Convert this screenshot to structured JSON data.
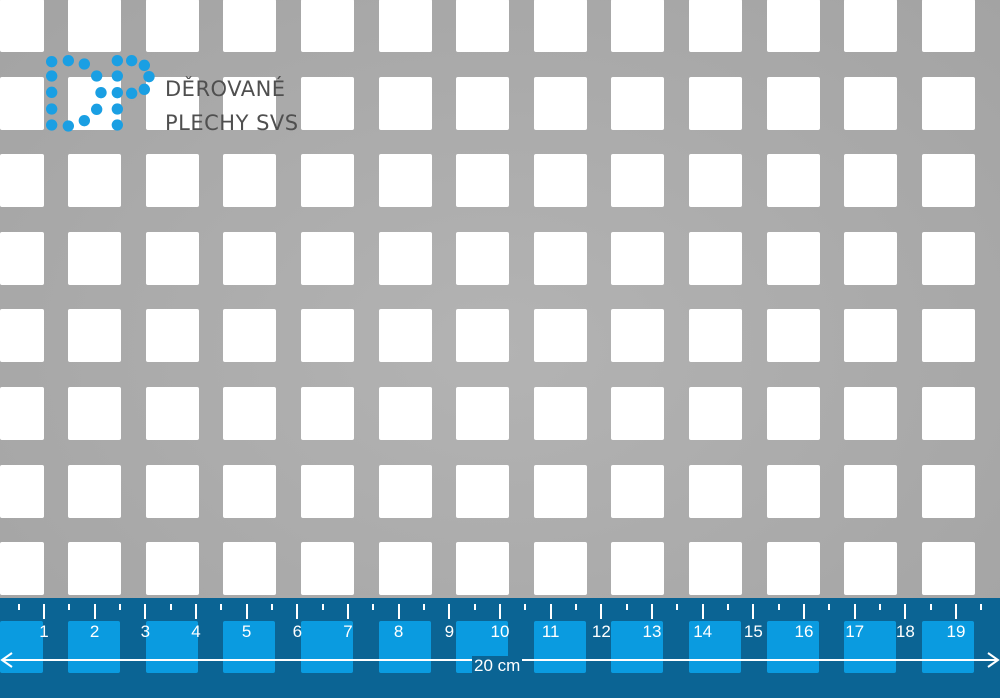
{
  "brand": {
    "line1": "DĚROVANÉ",
    "line2": "PLECHY SVS",
    "dot_color": "#1a9fe3",
    "text_color": "#4f4f4f"
  },
  "ruler": {
    "labels": [
      "1",
      "2",
      "3",
      "4",
      "5",
      "6",
      "7",
      "8",
      "9",
      "10",
      "11",
      "12",
      "13",
      "14",
      "15",
      "16",
      "17",
      "18",
      "19"
    ],
    "length_label": "20 cm",
    "band_color": "#0b6494",
    "hole_color": "#0a9be0"
  },
  "sheet": {
    "metal_color": "#a9a9a9",
    "perforation": "square"
  }
}
